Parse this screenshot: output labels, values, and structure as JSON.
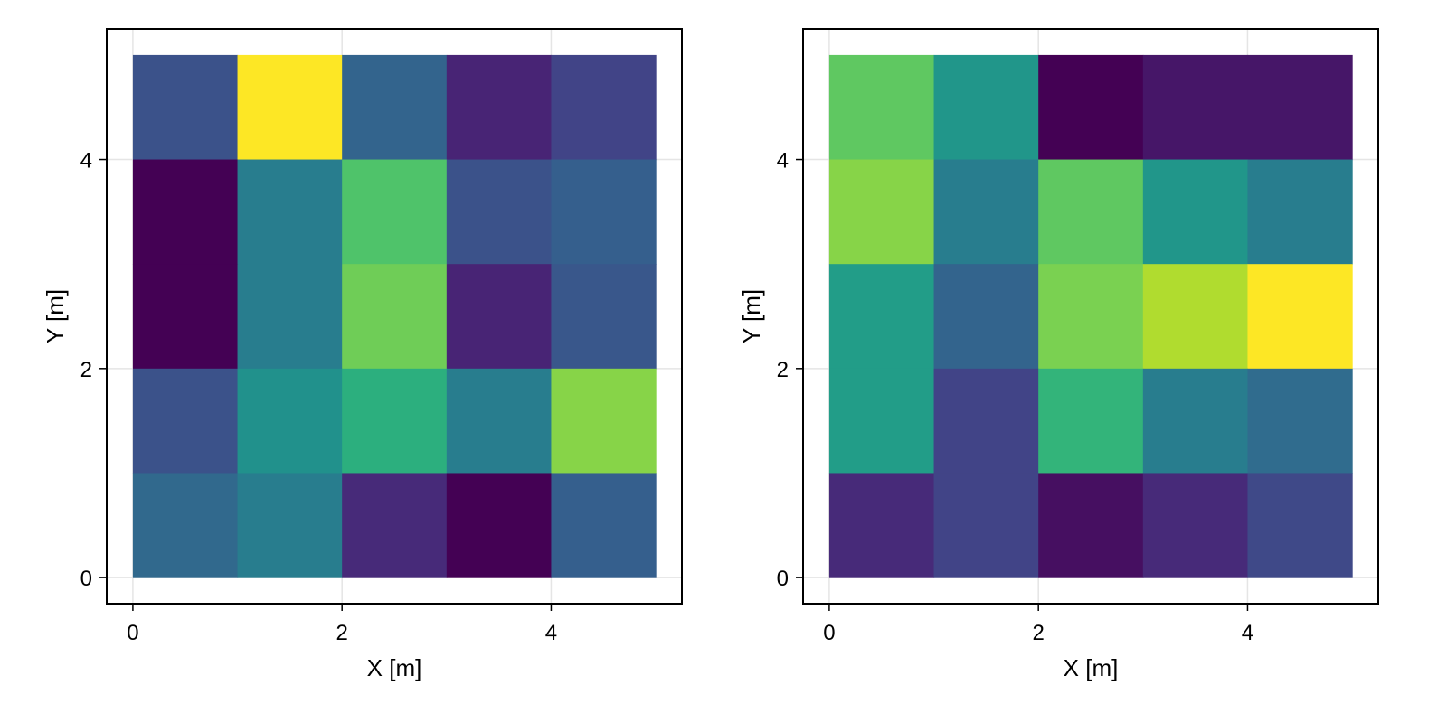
{
  "chart_data": [
    {
      "type": "heatmap",
      "title": "",
      "xlabel": "X [m]",
      "ylabel": "Y [m]",
      "xlim": [
        -0.25,
        5.25
      ],
      "ylim": [
        -0.25,
        5.25
      ],
      "xticks": [
        0,
        2,
        4
      ],
      "yticks": [
        0,
        2,
        4
      ],
      "xtick_labels": [
        "0",
        "2",
        "4"
      ],
      "ytick_labels": [
        "0",
        "2",
        "4"
      ],
      "grid": true,
      "colormap": "viridis",
      "x_edges": [
        0,
        1,
        2,
        3,
        4,
        5
      ],
      "y_edges": [
        0,
        1,
        2,
        3,
        4,
        5
      ],
      "z_rows_top_to_bottom": [
        [
          0.25,
          1.0,
          0.32,
          0.1,
          0.2
        ],
        [
          0.0,
          0.42,
          0.72,
          0.25,
          0.3
        ],
        [
          0.0,
          0.42,
          0.78,
          0.1,
          0.27
        ],
        [
          0.25,
          0.5,
          0.63,
          0.42,
          0.82
        ],
        [
          0.34,
          0.42,
          0.12,
          0.0,
          0.3
        ]
      ]
    },
    {
      "type": "heatmap",
      "title": "",
      "xlabel": "X [m]",
      "ylabel": "Y [m]",
      "xlim": [
        -0.25,
        5.25
      ],
      "ylim": [
        -0.25,
        5.25
      ],
      "xticks": [
        0,
        2,
        4
      ],
      "yticks": [
        0,
        2,
        4
      ],
      "xtick_labels": [
        "0",
        "2",
        "4"
      ],
      "ytick_labels": [
        "0",
        "2",
        "4"
      ],
      "grid": true,
      "colormap": "viridis",
      "x_edges": [
        0,
        1,
        2,
        3,
        4,
        5
      ],
      "y_edges": [
        0,
        1,
        2,
        3,
        4,
        5
      ],
      "z_rows_top_to_bottom": [
        [
          0.75,
          0.52,
          0.0,
          0.06,
          0.06
        ],
        [
          0.82,
          0.42,
          0.75,
          0.52,
          0.42
        ],
        [
          0.55,
          0.32,
          0.8,
          0.88,
          1.0
        ],
        [
          0.55,
          0.2,
          0.65,
          0.42,
          0.35
        ],
        [
          0.12,
          0.2,
          0.04,
          0.12,
          0.22
        ]
      ]
    }
  ]
}
